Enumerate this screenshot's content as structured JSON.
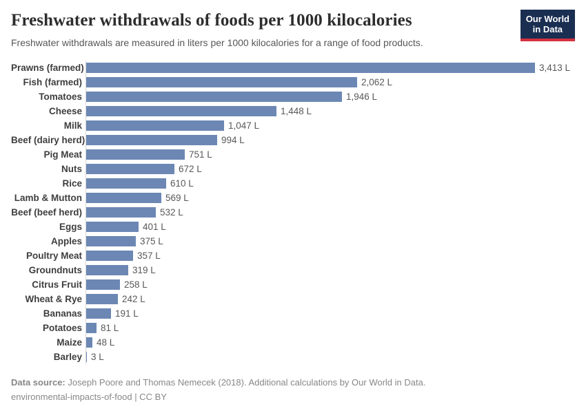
{
  "branding": {
    "logo_line1": "Our World",
    "logo_line2": "in Data",
    "logo_bg_color": "#1a2e51",
    "logo_accent_color": "#d4313e"
  },
  "chart_data": {
    "type": "bar",
    "orientation": "horizontal",
    "title": "Freshwater withdrawals of foods per 1000 kilocalories",
    "subtitle": "Freshwater withdrawals are measured in liters per 1000 kilocalories for a range of food products.",
    "unit": "liters per 1000 kilocalories",
    "xlim": [
      0,
      3413
    ],
    "grid": false,
    "legend": "none",
    "bar_color": "#6c87b3",
    "axis_line_color": "#d9d9d9",
    "categories": [
      "Prawns (farmed)",
      "Fish (farmed)",
      "Tomatoes",
      "Cheese",
      "Milk",
      "Beef (dairy herd)",
      "Pig Meat",
      "Nuts",
      "Rice",
      "Lamb & Mutton",
      "Beef (beef herd)",
      "Eggs",
      "Apples",
      "Poultry Meat",
      "Groundnuts",
      "Citrus Fruit",
      "Wheat & Rye",
      "Bananas",
      "Potatoes",
      "Maize",
      "Barley"
    ],
    "values": [
      3413,
      2062,
      1946,
      1448,
      1047,
      994,
      751,
      672,
      610,
      569,
      532,
      401,
      375,
      357,
      319,
      258,
      242,
      191,
      81,
      48,
      3
    ],
    "value_labels": [
      "3,413 L",
      "2,062 L",
      "1,946 L",
      "1,448 L",
      "1,047 L",
      "994 L",
      "751 L",
      "672 L",
      "610 L",
      "569 L",
      "532 L",
      "401 L",
      "375 L",
      "357 L",
      "319 L",
      "258 L",
      "242 L",
      "191 L",
      "81 L",
      "48 L",
      "3 L"
    ]
  },
  "footer": {
    "source_label": "Data source:",
    "source_text": "Joseph Poore and Thomas Nemecek (2018). Additional calculations by Our World in Data.",
    "note": "environmental-impacts-of-food | CC BY"
  }
}
